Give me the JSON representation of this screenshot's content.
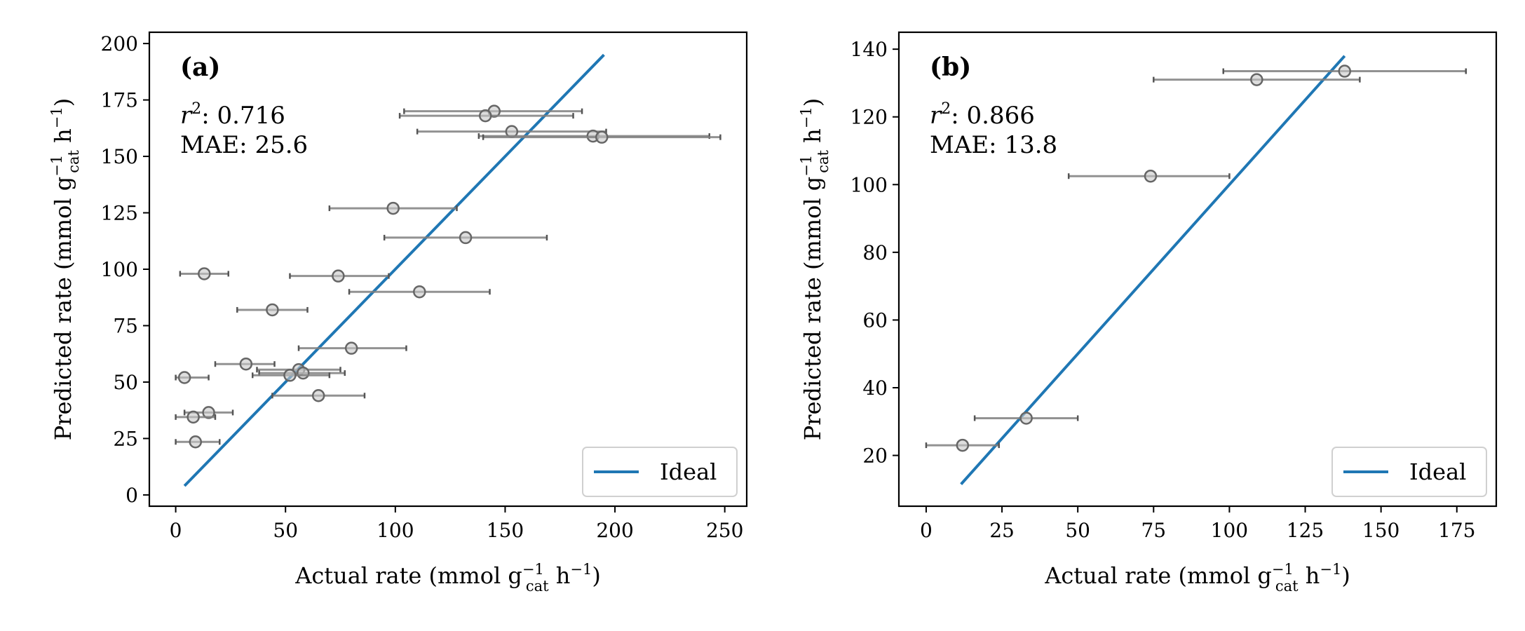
{
  "chart_data": [
    {
      "type": "scatter",
      "panel_label": "(a)",
      "xlabel": "Actual rate (mmol g",
      "ylabel": "Predicted rate (mmol g",
      "unit_sub": "cat",
      "unit_sup": "−1",
      "unit_h": " h",
      "unit_close": ")",
      "xlim": [
        -12,
        260
      ],
      "ylim": [
        -5,
        205
      ],
      "xticks": [
        0,
        50,
        100,
        150,
        200,
        250
      ],
      "yticks": [
        0,
        25,
        50,
        75,
        100,
        125,
        150,
        175,
        200
      ],
      "r2_label": "r",
      "r2_sup": "2",
      "r2_value": ":  0.716",
      "mae_text": "MAE: 25.6",
      "legend_label": "Ideal",
      "legend_position": "lower-right",
      "ideal_line": {
        "x": [
          4,
          195
        ],
        "y": [
          4,
          195
        ],
        "color": "#1f77b4"
      },
      "marker_color": "#808080",
      "points": [
        {
          "x": 145,
          "y": 170,
          "xerr_lo": 104,
          "xerr_hi": 185
        },
        {
          "x": 141,
          "y": 168,
          "xerr_lo": 102,
          "xerr_hi": 181
        },
        {
          "x": 153,
          "y": 161,
          "xerr_lo": 110,
          "xerr_hi": 196
        },
        {
          "x": 190,
          "y": 159,
          "xerr_lo": 138,
          "xerr_hi": 243
        },
        {
          "x": 194,
          "y": 158.5,
          "xerr_lo": 140,
          "xerr_hi": 248
        },
        {
          "x": 99,
          "y": 127,
          "xerr_lo": 70,
          "xerr_hi": 128
        },
        {
          "x": 132,
          "y": 114,
          "xerr_lo": 95,
          "xerr_hi": 169
        },
        {
          "x": 13,
          "y": 98,
          "xerr_lo": 2,
          "xerr_hi": 24
        },
        {
          "x": 74,
          "y": 97,
          "xerr_lo": 52,
          "xerr_hi": 97
        },
        {
          "x": 111,
          "y": 90,
          "xerr_lo": 79,
          "xerr_hi": 143
        },
        {
          "x": 44,
          "y": 82,
          "xerr_lo": 28,
          "xerr_hi": 60
        },
        {
          "x": 80,
          "y": 65,
          "xerr_lo": 56,
          "xerr_hi": 105
        },
        {
          "x": 32,
          "y": 58,
          "xerr_lo": 18,
          "xerr_hi": 45
        },
        {
          "x": 56,
          "y": 55.5,
          "xerr_lo": 37,
          "xerr_hi": 75
        },
        {
          "x": 58,
          "y": 54,
          "xerr_lo": 38,
          "xerr_hi": 77
        },
        {
          "x": 4,
          "y": 52,
          "xerr_lo": 0,
          "xerr_hi": 15
        },
        {
          "x": 52,
          "y": 53,
          "xerr_lo": 35,
          "xerr_hi": 70
        },
        {
          "x": 65,
          "y": 44,
          "xerr_lo": 44,
          "xerr_hi": 86
        },
        {
          "x": 15,
          "y": 36.5,
          "xerr_lo": 4,
          "xerr_hi": 26
        },
        {
          "x": 8,
          "y": 34.5,
          "xerr_lo": 0,
          "xerr_hi": 18
        },
        {
          "x": 9,
          "y": 23.5,
          "xerr_lo": 0,
          "xerr_hi": 20
        }
      ]
    },
    {
      "type": "scatter",
      "panel_label": "(b)",
      "xlabel": "Actual rate (mmol g",
      "ylabel": "Predicted rate (mmol g",
      "unit_sub": "cat",
      "unit_sup": "−1",
      "unit_h": " h",
      "unit_close": ")",
      "xlim": [
        -9,
        188
      ],
      "ylim": [
        5,
        145
      ],
      "xticks": [
        0,
        25,
        50,
        75,
        100,
        125,
        150,
        175
      ],
      "yticks": [
        20,
        40,
        60,
        80,
        100,
        120,
        140
      ],
      "r2_label": "r",
      "r2_sup": "2",
      "r2_value": ":  0.866",
      "mae_text": "MAE: 13.8",
      "legend_label": "Ideal",
      "legend_position": "lower-right",
      "ideal_line": {
        "x": [
          11.5,
          138
        ],
        "y": [
          11.5,
          138
        ],
        "color": "#1f77b4"
      },
      "marker_color": "#808080",
      "points": [
        {
          "x": 138,
          "y": 133.5,
          "xerr_lo": 98,
          "xerr_hi": 178
        },
        {
          "x": 109,
          "y": 131,
          "xerr_lo": 75,
          "xerr_hi": 143
        },
        {
          "x": 74,
          "y": 102.5,
          "xerr_lo": 47,
          "xerr_hi": 100
        },
        {
          "x": 33,
          "y": 31,
          "xerr_lo": 16,
          "xerr_hi": 50
        },
        {
          "x": 12,
          "y": 23,
          "xerr_lo": 0,
          "xerr_hi": 24
        }
      ]
    }
  ]
}
